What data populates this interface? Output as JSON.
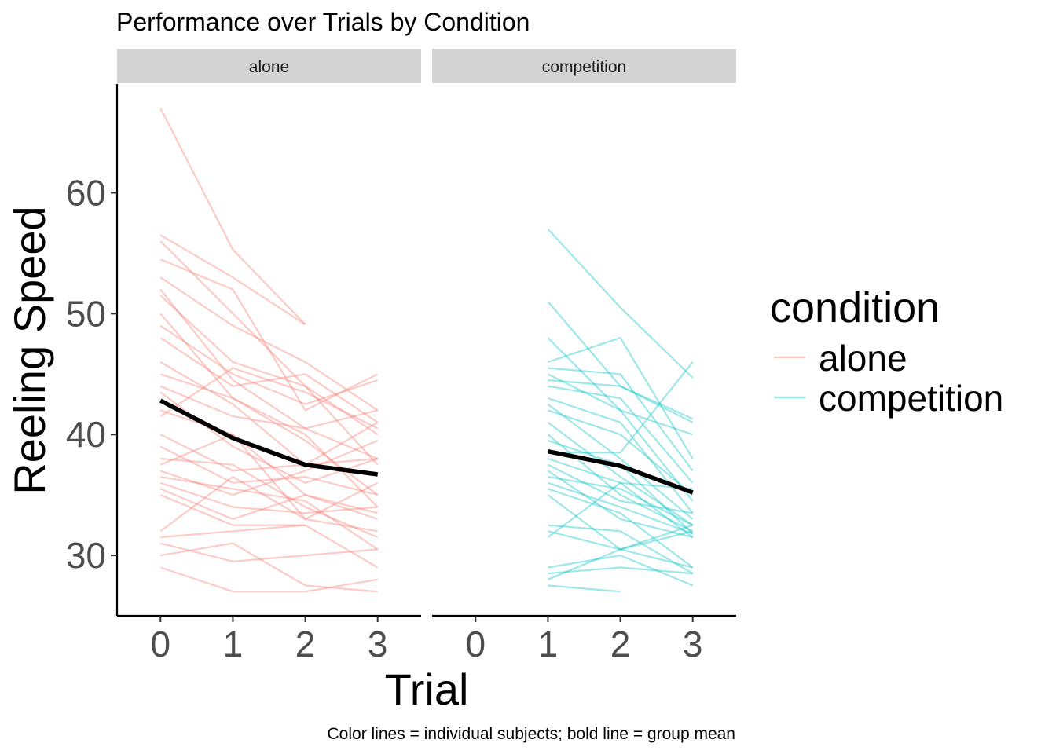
{
  "chart_data": {
    "type": "line",
    "title": "Performance over Trials by Condition",
    "caption": "Color lines = individual subjects; bold line = group mean",
    "xlabel": "Trial",
    "ylabel": "Reeling Speed",
    "x_ticks": [
      "0",
      "1",
      "2",
      "3"
    ],
    "y_ticks": [
      "30",
      "40",
      "50",
      "60"
    ],
    "ylim": [
      25,
      69
    ],
    "xlim": [
      -0.6,
      3.6
    ],
    "grid": false,
    "legend": {
      "title": "condition",
      "position": "right",
      "entries": [
        {
          "label": "alone",
          "color": "#F8766D"
        },
        {
          "label": "competition",
          "color": "#00BFC4"
        }
      ]
    },
    "panels": [
      {
        "strip": "alone",
        "color": "#F8766D",
        "mean": {
          "x": [
            0,
            1,
            2,
            3
          ],
          "y": [
            42.8,
            39.7,
            37.5,
            36.7
          ]
        },
        "subjects": [
          [
            67.0,
            55.3,
            49.1,
            null
          ],
          [
            56.5,
            53.0,
            49.1,
            null
          ],
          [
            56.0,
            50.0,
            44.0,
            40.0
          ],
          [
            54.5,
            52.0,
            42.0,
            45.0
          ],
          [
            53.0,
            49.0,
            46.0,
            42.0
          ],
          [
            52.0,
            44.5,
            40.5,
            38.0
          ],
          [
            51.5,
            46.0,
            44.0,
            37.5
          ],
          [
            50.0,
            43.0,
            39.5,
            35.0
          ],
          [
            49.0,
            45.0,
            42.5,
            44.5
          ],
          [
            48.0,
            44.0,
            45.0,
            41.0
          ],
          [
            46.0,
            42.5,
            37.5,
            41.0
          ],
          [
            45.0,
            43.0,
            40.0,
            34.0
          ],
          [
            44.0,
            41.5,
            40.5,
            42.0
          ],
          [
            43.5,
            39.0,
            36.0,
            38.0
          ],
          [
            42.0,
            40.0,
            35.0,
            33.0
          ],
          [
            41.5,
            45.5,
            43.5,
            40.5
          ],
          [
            40.0,
            37.0,
            37.5,
            38.0
          ],
          [
            39.0,
            36.0,
            36.5,
            35.0
          ],
          [
            38.0,
            37.5,
            34.0,
            31.5
          ],
          [
            37.5,
            40.0,
            33.0,
            36.0
          ],
          [
            37.0,
            35.0,
            37.0,
            39.5
          ],
          [
            36.5,
            35.5,
            34.5,
            30.5
          ],
          [
            36.0,
            34.0,
            33.5,
            34.0
          ],
          [
            35.5,
            33.0,
            35.0,
            33.5
          ],
          [
            35.0,
            32.5,
            32.5,
            null
          ],
          [
            32.0,
            36.5,
            33.0,
            32.0
          ],
          [
            31.5,
            32.0,
            32.5,
            29.0
          ],
          [
            31.0,
            29.5,
            30.0,
            30.5
          ],
          [
            30.0,
            31.0,
            27.5,
            27.0
          ],
          [
            29.0,
            27.0,
            27.0,
            28.0
          ]
        ]
      },
      {
        "strip": "competition",
        "color": "#00BFC4",
        "mean": {
          "x": [
            1,
            2,
            3
          ],
          "y": [
            38.6,
            37.4,
            35.2
          ]
        },
        "subjects": [
          [
            null,
            57.0,
            50.5,
            44.7
          ],
          [
            null,
            51.0,
            44.0,
            41.3
          ],
          [
            null,
            48.0,
            42.0,
            40.0
          ],
          [
            null,
            46.0,
            48.0,
            38.0
          ],
          [
            null,
            45.5,
            45.0,
            37.0
          ],
          [
            null,
            45.0,
            42.0,
            34.5
          ],
          [
            null,
            44.5,
            44.0,
            41.0
          ],
          [
            null,
            44.0,
            43.0,
            36.0
          ],
          [
            null,
            43.0,
            41.0,
            33.5
          ],
          [
            null,
            42.5,
            38.0,
            33.0
          ],
          [
            null,
            42.0,
            40.0,
            35.0
          ],
          [
            null,
            41.0,
            36.5,
            32.5
          ],
          [
            null,
            40.0,
            35.0,
            32.0
          ],
          [
            null,
            39.5,
            37.5,
            31.8
          ],
          [
            null,
            38.5,
            38.5,
            46.0
          ],
          [
            null,
            38.0,
            36.0,
            35.5
          ],
          [
            null,
            37.5,
            34.5,
            33.5
          ],
          [
            null,
            37.0,
            33.0,
            31.5
          ],
          [
            null,
            36.5,
            35.5,
            32.5
          ],
          [
            null,
            36.0,
            34.0,
            31.8
          ],
          [
            null,
            35.5,
            33.5,
            29.0
          ],
          [
            null,
            35.0,
            30.5,
            32.0
          ],
          [
            null,
            32.5,
            32.0,
            28.5
          ],
          [
            null,
            32.0,
            30.5,
            29.0
          ],
          [
            null,
            31.5,
            36.0,
            31.5
          ],
          [
            null,
            29.0,
            30.0,
            27.5
          ],
          [
            null,
            28.5,
            29.0,
            28.5
          ],
          [
            null,
            28.0,
            30.5,
            32.5
          ],
          [
            null,
            27.5,
            27.0,
            null
          ]
        ]
      }
    ]
  }
}
